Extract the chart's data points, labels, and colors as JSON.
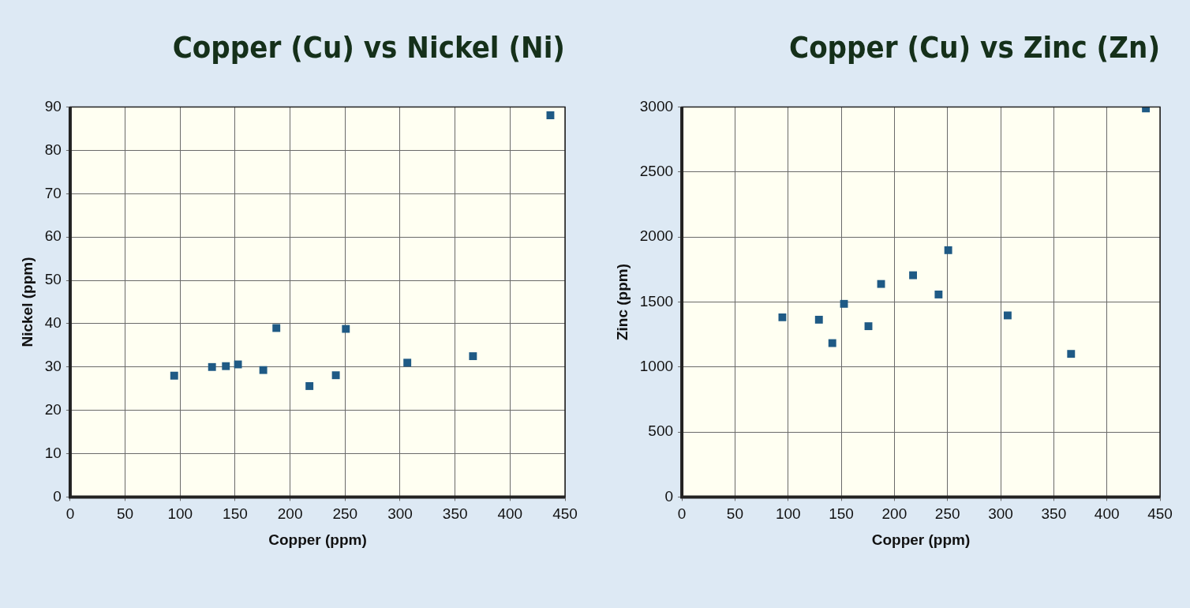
{
  "chart_data": [
    {
      "type": "scatter",
      "title": "Copper (Cu) vs Nickel (Ni)",
      "xlabel": "Copper (ppm)",
      "ylabel": "Nickel (ppm)",
      "marker": "square",
      "grid": true,
      "legend": false,
      "xlim": [
        0,
        450
      ],
      "xticks": [
        0,
        50,
        100,
        150,
        200,
        250,
        300,
        350,
        400,
        450
      ],
      "ylim": [
        0,
        90
      ],
      "yticks": [
        0,
        10,
        20,
        30,
        40,
        50,
        60,
        70,
        80,
        90
      ],
      "series": [
        {
          "color": "#1f5a85",
          "x": [
            94.6,
            129,
            141.6,
            152.6,
            175.6,
            187.5,
            217.6,
            241.6,
            250.7,
            306.6,
            366.3,
            436.7
          ],
          "values": [
            28,
            30,
            30.2,
            30.6,
            29.3,
            39,
            25.6,
            28.1,
            38.8,
            31,
            32.5,
            88.1
          ]
        }
      ]
    },
    {
      "type": "scatter",
      "title": "Copper (Cu) vs Zinc (Zn)",
      "xlabel": "Copper (ppm)",
      "ylabel": "Zinc (ppm)",
      "marker": "square",
      "grid": true,
      "legend": false,
      "xlim": [
        0,
        450
      ],
      "xticks": [
        0,
        50,
        100,
        150,
        200,
        250,
        300,
        350,
        400,
        450
      ],
      "ylim": [
        0,
        3000
      ],
      "yticks": [
        0,
        500,
        1000,
        1500,
        2000,
        2500,
        3000
      ],
      "series": [
        {
          "color": "#1f5a85",
          "x": [
            94.6,
            129,
            141.6,
            152.6,
            175.6,
            187.5,
            217.6,
            241.6,
            250.7,
            306.6,
            366.3,
            436.7
          ],
          "values": [
            1382,
            1364,
            1184,
            1486,
            1314,
            1639,
            1706,
            1558,
            1899,
            1397,
            1101,
            2990
          ]
        }
      ]
    }
  ]
}
